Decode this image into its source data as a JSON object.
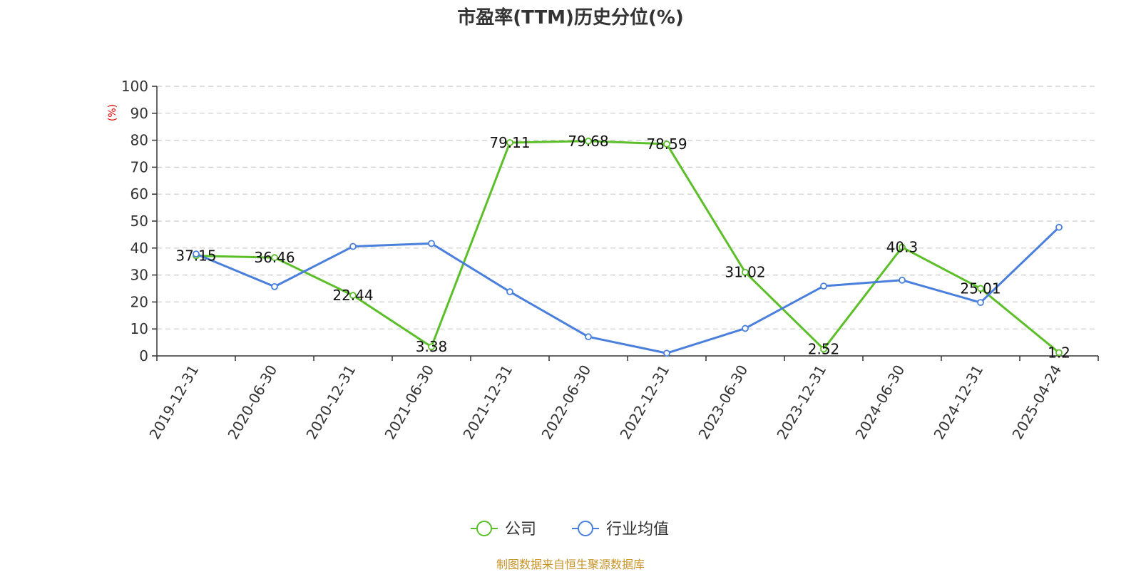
{
  "title": "市盈率(TTM)历史分位(%)",
  "source_note": "制图数据来自恒生聚源数据库",
  "chart_data": {
    "type": "line",
    "title": "市盈率(TTM)历史分位(%)",
    "ylabel": "(%)",
    "ylim": [
      0,
      100
    ],
    "y_ticks": [
      0,
      10,
      20,
      30,
      40,
      50,
      60,
      70,
      80,
      90,
      100
    ],
    "grid": "horizontal dashed",
    "legend_position": "bottom-center",
    "categories": [
      "2019-12-31",
      "2020-06-30",
      "2020-12-31",
      "2021-06-30",
      "2021-12-31",
      "2022-06-30",
      "2022-12-31",
      "2023-06-30",
      "2023-12-31",
      "2024-06-30",
      "2024-12-31",
      "2025-04-24"
    ],
    "series": [
      {
        "name": "公司",
        "color": "#5cbf2a",
        "values": [
          37.15,
          36.46,
          22.44,
          3.38,
          79.11,
          79.68,
          78.59,
          31.02,
          2.52,
          40.3,
          25.01,
          1.2
        ],
        "labels": [
          "37.15",
          "36.46",
          "22.44",
          "3.38",
          "79.11",
          "79.68",
          "78.59",
          "31.02",
          "2.52",
          "40.3",
          "25.01",
          "1.2"
        ]
      },
      {
        "name": "行业均值",
        "color": "#4a7fdc",
        "values": [
          37.8,
          25.7,
          40.6,
          41.7,
          23.8,
          7.1,
          1.0,
          10.2,
          25.9,
          28.1,
          19.8,
          47.7
        ]
      }
    ]
  }
}
